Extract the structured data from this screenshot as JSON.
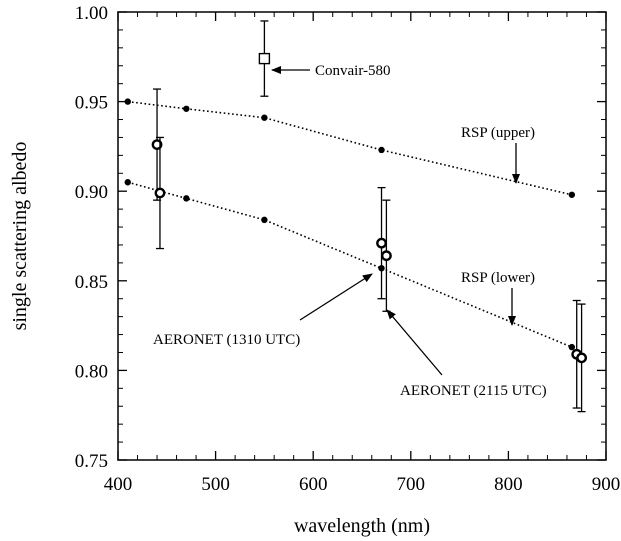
{
  "chart_data": {
    "type": "scatter",
    "title": "",
    "xlabel": "wavelength (nm)",
    "ylabel": "single scattering albedo",
    "xlim": [
      400,
      900
    ],
    "ylim": [
      0.75,
      1.0
    ],
    "xticks": [
      400,
      500,
      600,
      700,
      800,
      900
    ],
    "yticks": [
      0.75,
      0.8,
      0.85,
      0.9,
      0.95,
      1.0
    ],
    "xtick_labels": [
      "400",
      "500",
      "600",
      "700",
      "800",
      "900"
    ],
    "ytick_labels": [
      "0.75",
      "0.80",
      "0.85",
      "0.90",
      "0.95",
      "1.00"
    ],
    "grid": false,
    "series": [
      {
        "name": "RSP (upper)",
        "style": "dotted-line-dots",
        "x": [
          410,
          470,
          550,
          670,
          865
        ],
        "y": [
          0.95,
          0.946,
          0.941,
          0.923,
          0.898
        ]
      },
      {
        "name": "RSP (lower)",
        "style": "dotted-line-dots",
        "x": [
          410,
          470,
          550,
          670,
          865
        ],
        "y": [
          0.905,
          0.896,
          0.884,
          0.857,
          0.813
        ]
      },
      {
        "name": "AERONET (1310 UTC)",
        "style": "open-circle-errorbar",
        "x": [
          440,
          670,
          870
        ],
        "y": [
          0.926,
          0.871,
          0.809
        ],
        "err": [
          0.031,
          0.031,
          0.03
        ]
      },
      {
        "name": "AERONET (2115 UTC)",
        "style": "open-circle-errorbar",
        "x": [
          443,
          675,
          875
        ],
        "y": [
          0.899,
          0.864,
          0.807
        ],
        "err": [
          0.031,
          0.031,
          0.03
        ]
      },
      {
        "name": "Convair-580",
        "style": "open-square-errorbar",
        "x": [
          550
        ],
        "y": [
          0.974
        ],
        "err": [
          0.021
        ]
      }
    ],
    "annotations": [
      {
        "text": "Convair-580",
        "kind": "arrow-label"
      },
      {
        "text": "RSP (upper)",
        "kind": "arrow-label"
      },
      {
        "text": "RSP (lower)",
        "kind": "arrow-label"
      },
      {
        "text": "AERONET (1310 UTC)",
        "kind": "arrow-label"
      },
      {
        "text": "AERONET (2115 UTC)",
        "kind": "arrow-label"
      }
    ],
    "colors": {
      "ink": "#000000",
      "background": "#ffffff"
    }
  }
}
